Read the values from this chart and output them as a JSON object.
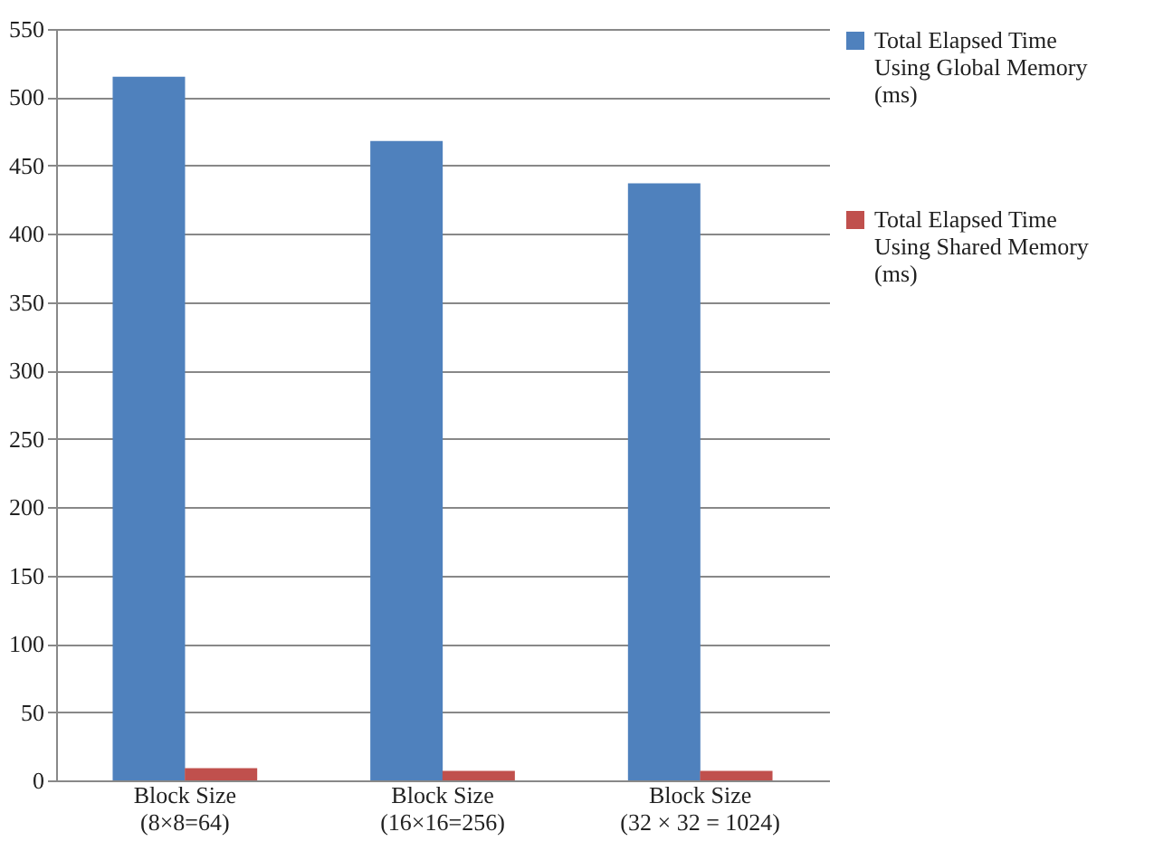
{
  "chart_data": {
    "type": "bar",
    "categories": [
      "Block Size\n(8×8=64)",
      "Block Size\n(16×16=256)",
      "Block Size\n(32 × 32 = 1024)"
    ],
    "series": [
      {
        "name": "Total Elapsed Time Using Global Memory (ms)",
        "color": "#4f81bd",
        "values": [
          515,
          468,
          437
        ]
      },
      {
        "name": "Total Elapsed Time Using Shared Memory (ms)",
        "color": "#c0504d",
        "values": [
          9,
          7,
          7
        ]
      }
    ],
    "ylim": [
      0,
      550
    ],
    "yticks": [
      0,
      50,
      100,
      150,
      200,
      250,
      300,
      350,
      400,
      450,
      500,
      550
    ],
    "grid": "y",
    "legend": "right"
  }
}
